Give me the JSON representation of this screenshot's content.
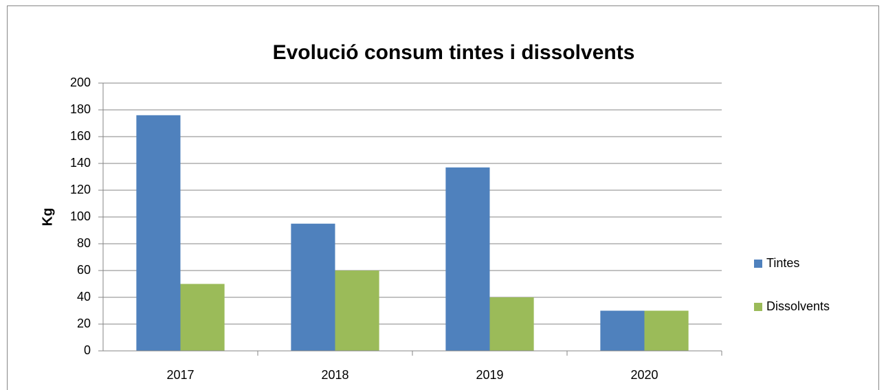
{
  "chart_data": {
    "type": "bar",
    "title": "Evolució consum tintes i dissolvents",
    "y_label": "Kg",
    "categories": [
      "2017",
      "2018",
      "2019",
      "2020"
    ],
    "series": [
      {
        "name": "Tintes",
        "color": "#4f81bd",
        "values": [
          176,
          95,
          137,
          30
        ]
      },
      {
        "name": "Dissolvents",
        "color": "#9bbb59",
        "values": [
          50,
          60,
          40,
          30
        ]
      }
    ],
    "ylim": [
      0,
      200
    ],
    "yticks": [
      0,
      20,
      40,
      60,
      80,
      100,
      120,
      140,
      160,
      180,
      200
    ],
    "grid": true,
    "legend": "right"
  }
}
